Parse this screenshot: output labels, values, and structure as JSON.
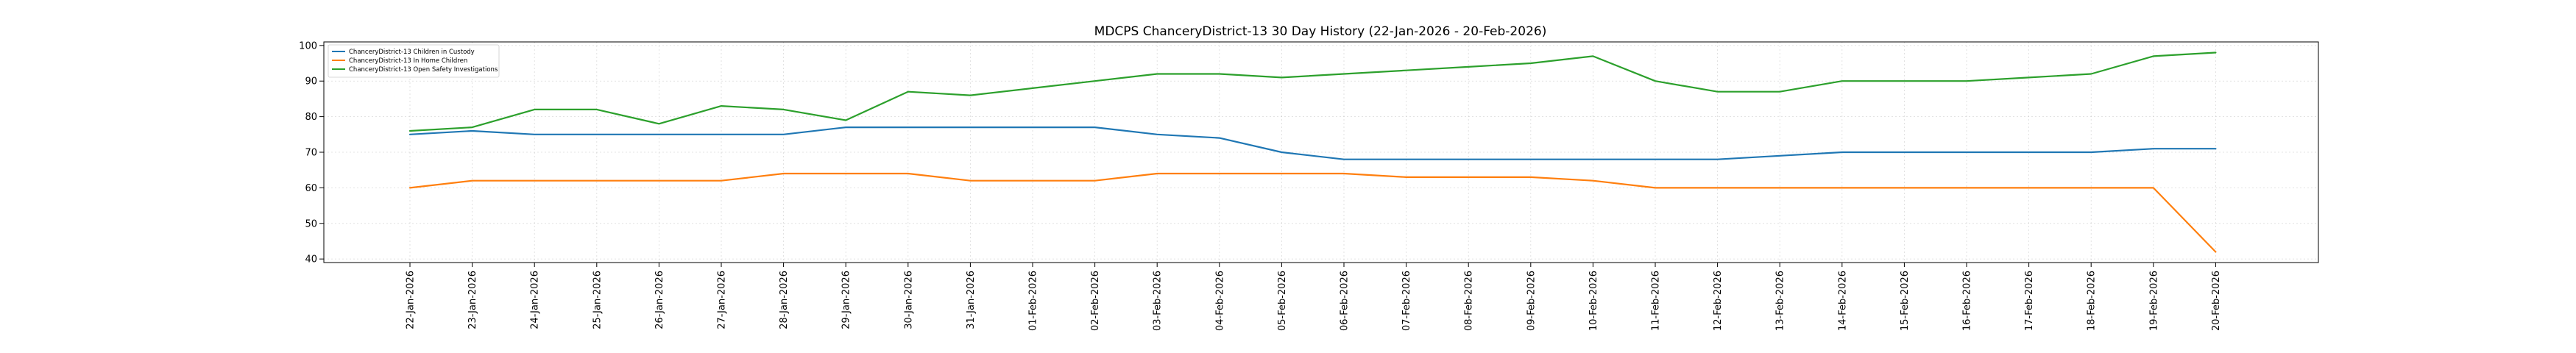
{
  "chart_data": {
    "type": "line",
    "title": "MDCPS ChanceryDistrict-13 30 Day History (22-Jan-2026 - 20-Feb-2026)",
    "xlabel": "",
    "ylabel": "",
    "ylim": [
      39,
      101
    ],
    "yticks": [
      40,
      50,
      60,
      70,
      80,
      90,
      100
    ],
    "grid": true,
    "legend_position": "upper-left",
    "categories": [
      "22-Jan-2026",
      "23-Jan-2026",
      "24-Jan-2026",
      "25-Jan-2026",
      "26-Jan-2026",
      "27-Jan-2026",
      "28-Jan-2026",
      "29-Jan-2026",
      "30-Jan-2026",
      "31-Jan-2026",
      "01-Feb-2026",
      "02-Feb-2026",
      "03-Feb-2026",
      "04-Feb-2026",
      "05-Feb-2026",
      "06-Feb-2026",
      "07-Feb-2026",
      "08-Feb-2026",
      "09-Feb-2026",
      "10-Feb-2026",
      "11-Feb-2026",
      "12-Feb-2026",
      "13-Feb-2026",
      "14-Feb-2026",
      "15-Feb-2026",
      "16-Feb-2026",
      "17-Feb-2026",
      "18-Feb-2026",
      "19-Feb-2026",
      "20-Feb-2026"
    ],
    "series": [
      {
        "name": "ChanceryDistrict-13 Children in Custody",
        "color": "#1f77b4",
        "values": [
          75,
          76,
          75,
          75,
          75,
          75,
          75,
          77,
          77,
          77,
          77,
          77,
          75,
          74,
          70,
          68,
          68,
          68,
          68,
          68,
          68,
          68,
          69,
          70,
          70,
          70,
          70,
          70,
          71,
          71
        ]
      },
      {
        "name": "ChanceryDistrict-13 In Home Children",
        "color": "#ff7f0e",
        "values": [
          60,
          62,
          62,
          62,
          62,
          62,
          64,
          64,
          64,
          62,
          62,
          62,
          64,
          64,
          64,
          64,
          63,
          63,
          63,
          62,
          60,
          60,
          60,
          60,
          60,
          60,
          60,
          60,
          60,
          42
        ]
      },
      {
        "name": "ChanceryDistrict-13 Open Safety Investigations",
        "color": "#2ca02c",
        "values": [
          76,
          77,
          82,
          82,
          78,
          83,
          82,
          79,
          87,
          86,
          88,
          90,
          92,
          92,
          91,
          92,
          93,
          94,
          95,
          97,
          90,
          87,
          87,
          90,
          90,
          90,
          91,
          92,
          97,
          98
        ]
      }
    ]
  }
}
